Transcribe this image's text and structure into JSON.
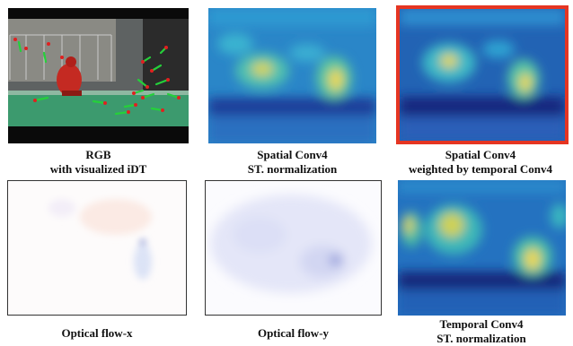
{
  "figure": {
    "panels": [
      {
        "caption_lines": [
          "RGB",
          "with visualized iDT"
        ]
      },
      {
        "caption_lines": [
          "Spatial Conv4",
          "ST. normalization"
        ]
      },
      {
        "caption_lines": [
          "Spatial Conv4",
          "weighted by temporal Conv4"
        ],
        "highlighted": true,
        "highlight_color": "#e53522"
      },
      {
        "caption_lines": [
          "Optical flow-x"
        ]
      },
      {
        "caption_lines": [
          "Optical flow-y"
        ]
      },
      {
        "caption_lines": [
          "Temporal Conv4",
          "ST. normalization"
        ]
      }
    ],
    "colors": {
      "heatmap_low": "#1b2b86",
      "heatmap_mid": "#2aa0d6",
      "heatmap_high": "#f1d94a",
      "field_green": "#3c9a6e",
      "track_green": "#25d03a",
      "track_red": "#e02020"
    }
  }
}
